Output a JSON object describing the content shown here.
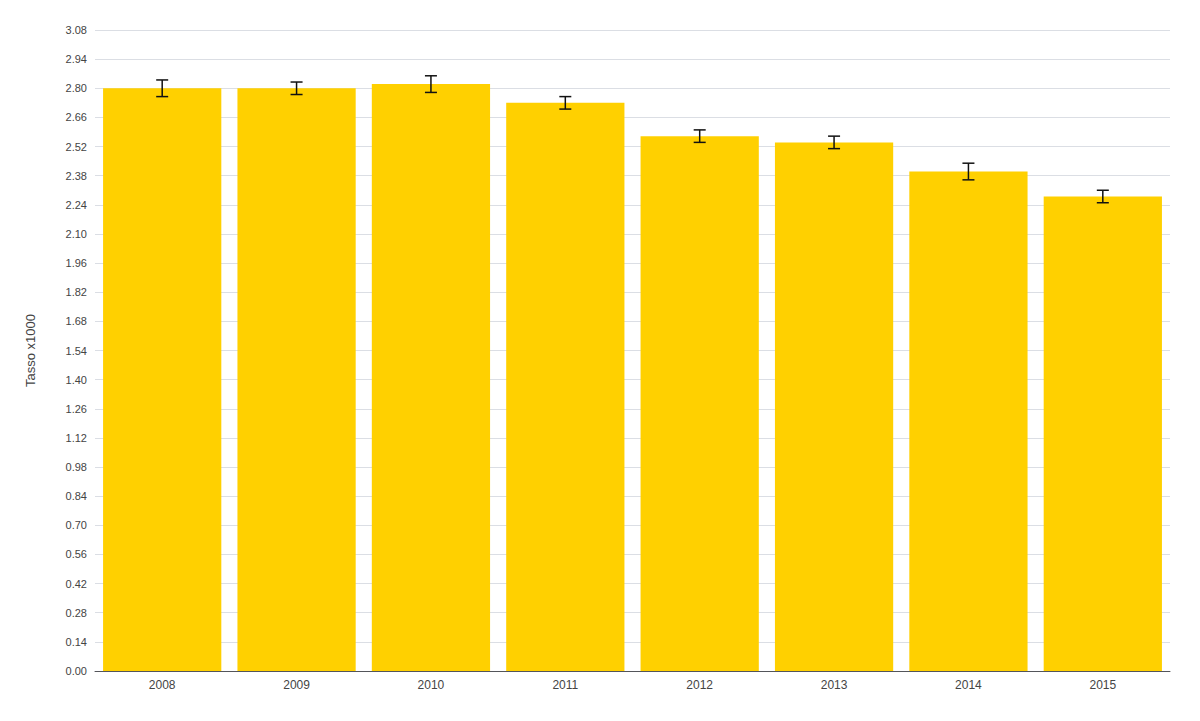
{
  "chart_data": {
    "type": "bar",
    "categories": [
      "2008",
      "2009",
      "2010",
      "2011",
      "2012",
      "2013",
      "2014",
      "2015"
    ],
    "values": [
      2.8,
      2.8,
      2.82,
      2.73,
      2.57,
      2.54,
      2.4,
      2.28
    ],
    "errors": [
      0.04,
      0.03,
      0.04,
      0.03,
      0.03,
      0.03,
      0.04,
      0.03
    ],
    "color": "#FFD000",
    "ylabel": "Tasso x1000",
    "ylim": [
      0.0,
      3.08
    ],
    "yticks": [
      {
        "value": 0,
        "label": "0.00"
      },
      0.14,
      0.28,
      0.42,
      0.56,
      {
        "value": 0.7,
        "label": "0.70"
      },
      0.84,
      0.98,
      1.12,
      1.26,
      {
        "value": 1.4,
        "label": "1.40"
      },
      1.54,
      1.68,
      1.82,
      1.96,
      {
        "value": 2.1,
        "label": "2.10"
      },
      2.24,
      2.38,
      2.52,
      2.66,
      {
        "value": 2.8,
        "label": "2.80"
      },
      2.94,
      3.08
    ],
    "grid": true
  }
}
